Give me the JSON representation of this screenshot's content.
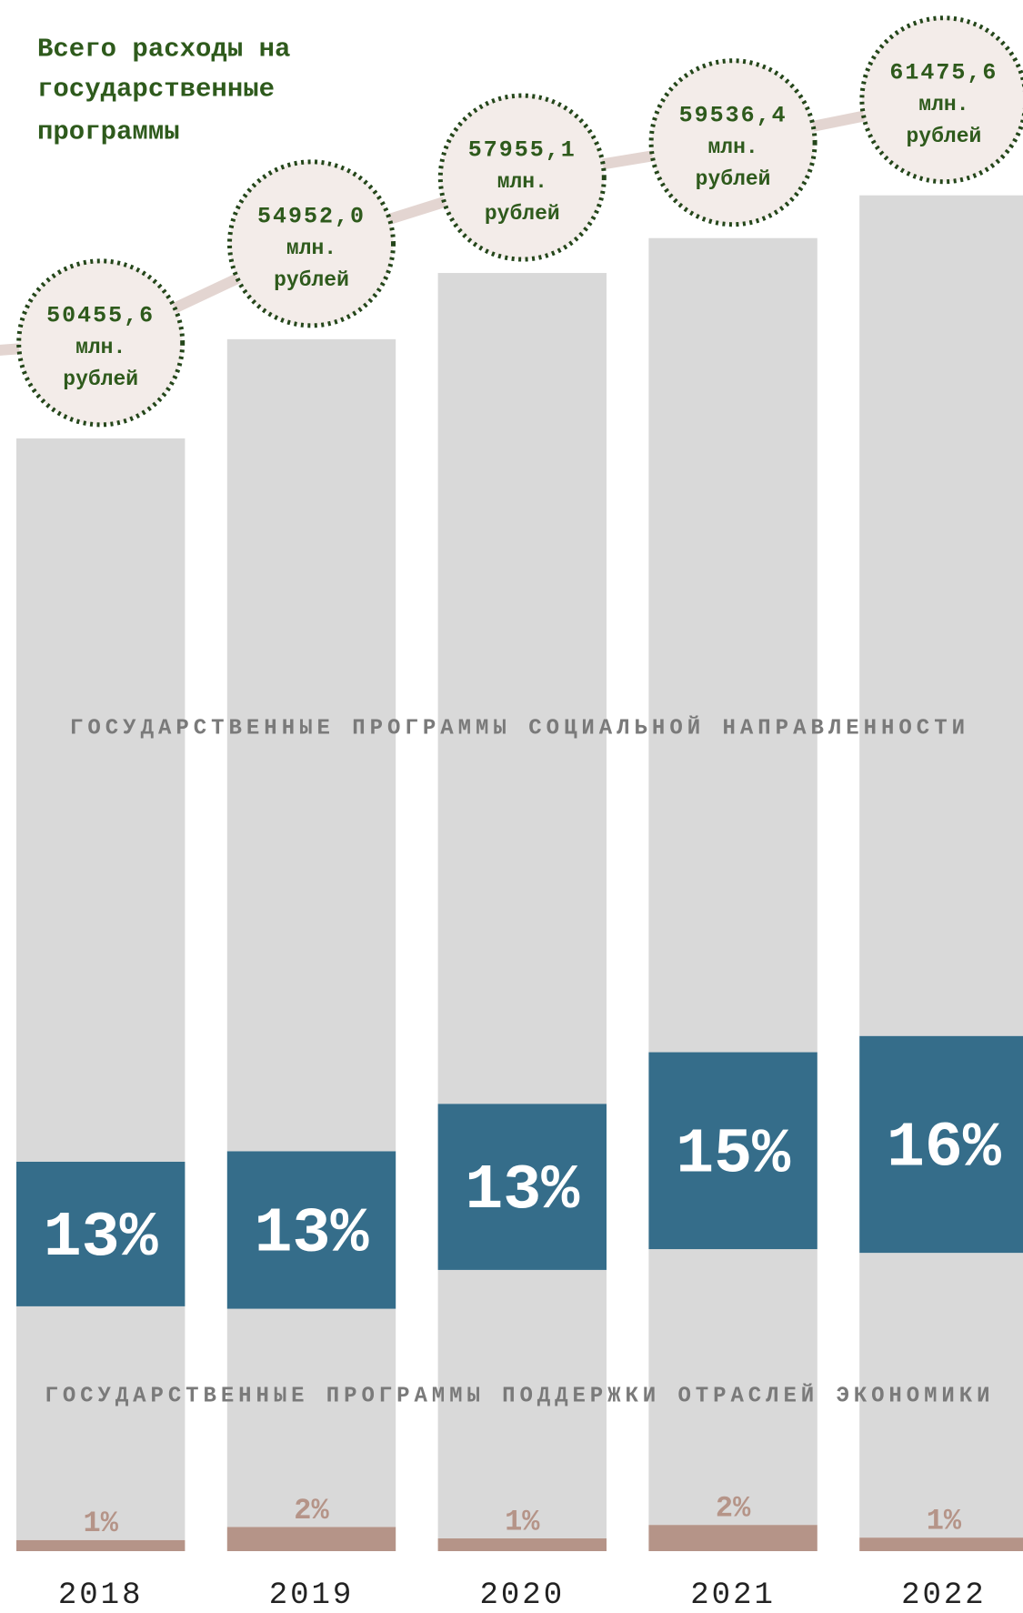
{
  "chart_data": {
    "type": "bar",
    "title": [
      "Всего расходы на",
      "государственные",
      "программы"
    ],
    "categories": [
      "2018",
      "2019",
      "2020",
      "2021",
      "2022"
    ],
    "ylim": [
      0,
      62000
    ],
    "totals": {
      "values": [
        50455.6,
        54952.0,
        57955.1,
        59536.4,
        61475.6
      ],
      "value_labels": [
        "50455,6",
        "54952,0",
        "57955,1",
        "59536,4",
        "61475,6"
      ],
      "unit_labels": [
        "млн.",
        "рублей"
      ],
      "color": "#e3d5d1"
    },
    "series": [
      {
        "color": "#b59488",
        "values": [
          1,
          2,
          1,
          2,
          1
        ],
        "value_labels": [
          "1%",
          "2%",
          "1%",
          "2%",
          "1%"
        ]
      },
      {
        "name": "ГОСУДАРСТВЕННЫЕ ПРОГРАММЫ ПОДДЕРЖКИ ОТРАСЛЕЙ ЭКОНОМИКИ",
        "color": "#d9d9d9",
        "values": [
          21,
          18,
          21,
          21,
          21
        ]
      },
      {
        "color": "#356d8a",
        "values": [
          13,
          13,
          13,
          15,
          16
        ],
        "value_labels": [
          "13%",
          "13%",
          "13%",
          "15%",
          "16%"
        ]
      },
      {
        "name": "ГОСУДАРСТВЕННЫЕ ПРОГРАММЫ СОЦИАЛЬНОЙ НАПРАВЛЕННОСТИ",
        "color": "#d9d9d9",
        "values": [
          65,
          67,
          65,
          62,
          62
        ]
      }
    ]
  }
}
